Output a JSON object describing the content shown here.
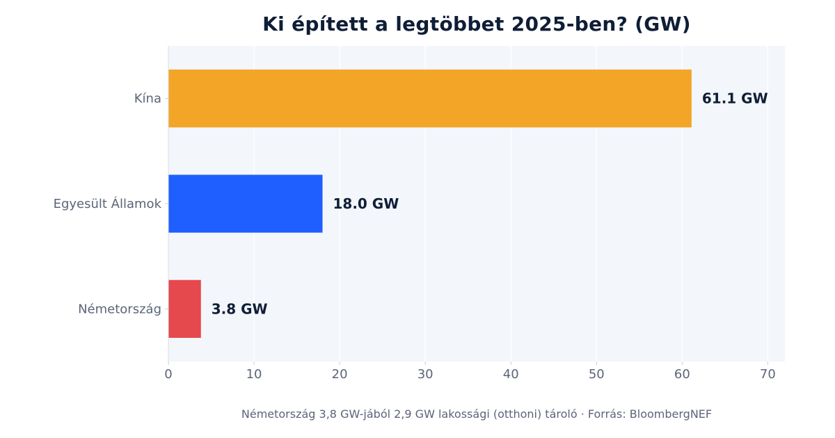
{
  "chart_data": {
    "type": "bar",
    "orientation": "horizontal",
    "title": "Ki épített a legtöbbet 2025-ben? (GW)",
    "xlabel": "",
    "ylabel": "",
    "categories": [
      "Kína",
      "Egyesült Államok",
      "Németország"
    ],
    "values": [
      61.1,
      18.0,
      3.8
    ],
    "data_labels": [
      "61.1 GW",
      "18.0 GW",
      "3.8 GW"
    ],
    "colors": [
      "#f2a527",
      "#1f5eff",
      "#e5484d"
    ],
    "xlim": [
      0,
      72
    ],
    "xticks": [
      0,
      10,
      20,
      30,
      40,
      50,
      60,
      70
    ],
    "grid": "vertical",
    "background": "#f3f6fa",
    "footnote": "Németország 3,8 GW-jából 2,9 GW lakossági (otthoni) tároló · Forrás: BloombergNEF"
  }
}
